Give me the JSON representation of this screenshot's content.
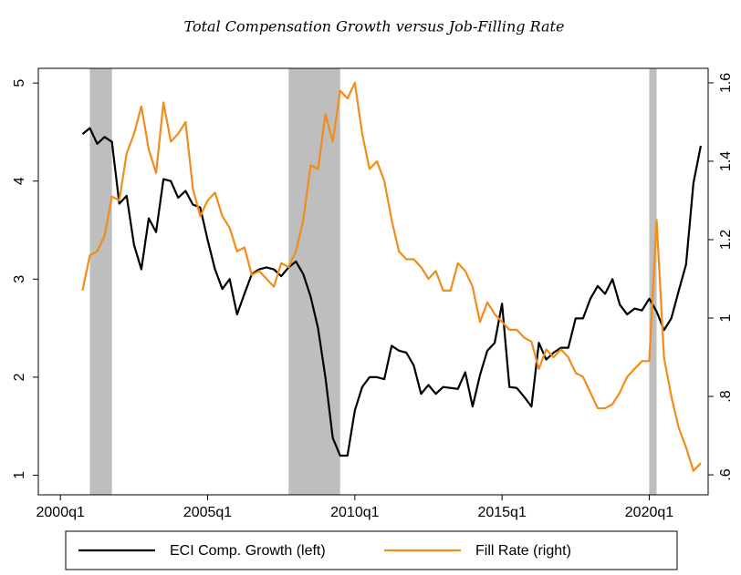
{
  "chart_data": {
    "type": "line",
    "title": "Total Compensation Growth versus Job-Filling Rate",
    "x": [
      "2000q4",
      "2001q1",
      "2001q2",
      "2001q3",
      "2001q4",
      "2002q1",
      "2002q2",
      "2002q3",
      "2002q4",
      "2003q1",
      "2003q2",
      "2003q3",
      "2003q4",
      "2004q1",
      "2004q2",
      "2004q3",
      "2004q4",
      "2005q1",
      "2005q2",
      "2005q3",
      "2005q4",
      "2006q1",
      "2006q2",
      "2006q3",
      "2006q4",
      "2007q1",
      "2007q2",
      "2007q3",
      "2007q4",
      "2008q1",
      "2008q2",
      "2008q3",
      "2008q4",
      "2009q1",
      "2009q2",
      "2009q3",
      "2009q4",
      "2010q1",
      "2010q2",
      "2010q3",
      "2010q4",
      "2011q1",
      "2011q2",
      "2011q3",
      "2011q4",
      "2012q1",
      "2012q2",
      "2012q3",
      "2012q4",
      "2013q1",
      "2013q2",
      "2013q3",
      "2013q4",
      "2014q1",
      "2014q2",
      "2014q3",
      "2014q4",
      "2015q1",
      "2015q2",
      "2015q3",
      "2015q4",
      "2016q1",
      "2016q2",
      "2016q3",
      "2016q4",
      "2017q1",
      "2017q2",
      "2017q3",
      "2017q4",
      "2018q1",
      "2018q2",
      "2018q3",
      "2018q4",
      "2019q1",
      "2019q2",
      "2019q3",
      "2019q4",
      "2020q1",
      "2020q2",
      "2020q3",
      "2020q4",
      "2021q1",
      "2021q2",
      "2021q3",
      "2021q4"
    ],
    "series": [
      {
        "name": "ECI Comp. Growth (left)",
        "color": "#000000",
        "axis": "y",
        "values": [
          4.48,
          4.54,
          4.38,
          4.45,
          4.4,
          3.77,
          3.85,
          3.35,
          3.1,
          3.62,
          3.48,
          4.02,
          4.0,
          3.83,
          3.9,
          3.76,
          3.73,
          3.4,
          3.1,
          2.9,
          3.0,
          2.64,
          2.85,
          3.05,
          3.1,
          3.12,
          3.1,
          3.03,
          3.12,
          3.18,
          3.05,
          2.82,
          2.5,
          2.0,
          1.38,
          1.2,
          1.2,
          1.66,
          1.9,
          2.0,
          2.0,
          1.98,
          2.32,
          2.27,
          2.25,
          2.12,
          1.83,
          1.92,
          1.83,
          1.9,
          1.89,
          1.88,
          2.05,
          1.7,
          2.02,
          2.27,
          2.35,
          2.75,
          1.9,
          1.89,
          1.8,
          1.7,
          2.35,
          2.18,
          2.25,
          2.3,
          2.3,
          2.6,
          2.6,
          2.8,
          2.93,
          2.85,
          3.0,
          2.74,
          2.64,
          2.7,
          2.68,
          2.8,
          2.67,
          2.48,
          2.6,
          2.88,
          3.15,
          3.98,
          4.36
        ]
      },
      {
        "name": "Fill Rate (right)",
        "color": "#f28c1a",
        "axis": "y2",
        "values": [
          1.07,
          1.16,
          1.17,
          1.21,
          1.31,
          1.3,
          1.42,
          1.47,
          1.54,
          1.43,
          1.37,
          1.55,
          1.45,
          1.47,
          1.5,
          1.33,
          1.26,
          1.3,
          1.32,
          1.26,
          1.23,
          1.17,
          1.18,
          1.11,
          1.12,
          1.1,
          1.08,
          1.14,
          1.13,
          1.17,
          1.25,
          1.39,
          1.38,
          1.52,
          1.45,
          1.58,
          1.56,
          1.6,
          1.47,
          1.38,
          1.4,
          1.35,
          1.25,
          1.17,
          1.15,
          1.15,
          1.13,
          1.1,
          1.12,
          1.07,
          1.07,
          1.14,
          1.12,
          1.08,
          0.99,
          1.04,
          1.01,
          0.99,
          0.97,
          0.97,
          0.95,
          0.94,
          0.87,
          0.92,
          0.9,
          0.92,
          0.9,
          0.86,
          0.85,
          0.81,
          0.77,
          0.77,
          0.78,
          0.81,
          0.85,
          0.87,
          0.89,
          0.89,
          1.25,
          0.9,
          0.8,
          0.72,
          0.67,
          0.61,
          0.63
        ]
      }
    ],
    "shading": [
      [
        "2001q1",
        "2001q4"
      ],
      [
        "2007q4",
        "2009q3"
      ],
      [
        "2020q1",
        "2020q2"
      ]
    ],
    "shading_color": "#bebebe",
    "xlim": [
      "1999q2",
      "2022q1"
    ],
    "xticks": [
      "2000q1",
      "2005q1",
      "2010q1",
      "2015q1",
      "2020q1"
    ],
    "ylim": [
      0.8,
      5.15
    ],
    "yticks": [
      1,
      2,
      3,
      4,
      5
    ],
    "y2lim": [
      0.549,
      1.637
    ],
    "y2ticks": [
      {
        "value": 0.6,
        "label": ".6"
      },
      {
        "value": 0.8,
        "label": ".8"
      },
      1,
      1.2,
      1.4,
      1.6
    ],
    "grid": false,
    "legend": "bottom"
  }
}
